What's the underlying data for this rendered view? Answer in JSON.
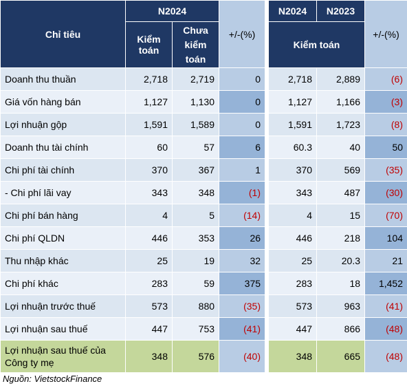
{
  "header": {
    "indicator": "Chỉ tiêu",
    "group_2024": "N2024",
    "audited": "Kiểm toán",
    "unaudited": "Chưa kiểm toán",
    "change": "+/-(%)",
    "n2024": "N2024",
    "n2023": "N2023",
    "audited_both": "Kiểm toán",
    "change_yoy": "+/-(%)"
  },
  "table": {
    "rows": [
      [
        "Doanh thu thuần",
        "2,718",
        "2,719",
        "0",
        "2,718",
        "2,889",
        "(6)"
      ],
      [
        "Giá vốn hàng bán",
        "1,127",
        "1,130",
        "0",
        "1,127",
        "1,166",
        "(3)"
      ],
      [
        "Lợi nhuận gộp",
        "1,591",
        "1,589",
        "0",
        "1,591",
        "1,723",
        "(8)"
      ],
      [
        "Doanh thu tài chính",
        "60",
        "57",
        "6",
        "60.3",
        "40",
        "50"
      ],
      [
        "Chi phí tài chính",
        "370",
        "367",
        "1",
        "370",
        "569",
        "(35)"
      ],
      [
        "- Chi phí lãi vay",
        "343",
        "348",
        "(1)",
        "343",
        "487",
        "(30)"
      ],
      [
        "Chi phí bán hàng",
        "4",
        "5",
        "(14)",
        "4",
        "15",
        "(70)"
      ],
      [
        "Chi phí QLDN",
        "446",
        "353",
        "26",
        "446",
        "218",
        "104"
      ],
      [
        "Thu nhập khác",
        "25",
        "19",
        "32",
        "25",
        "20.3",
        "21"
      ],
      [
        "Chi phí khác",
        "283",
        "59",
        "375",
        "283",
        "18",
        "1,452"
      ],
      [
        "Lợi nhuận trước thuế",
        "573",
        "880",
        "(35)",
        "573",
        "963",
        "(41)"
      ],
      [
        "Lợi nhuận sau thuế",
        "447",
        "753",
        "(41)",
        "447",
        "866",
        "(48)"
      ],
      [
        "Lợi nhuận sau thuế của Công ty mẹ",
        "348",
        "576",
        "(40)",
        "348",
        "665",
        "(48)"
      ]
    ]
  },
  "footer": {
    "source": "Nguồn: VietstockFinance"
  }
}
